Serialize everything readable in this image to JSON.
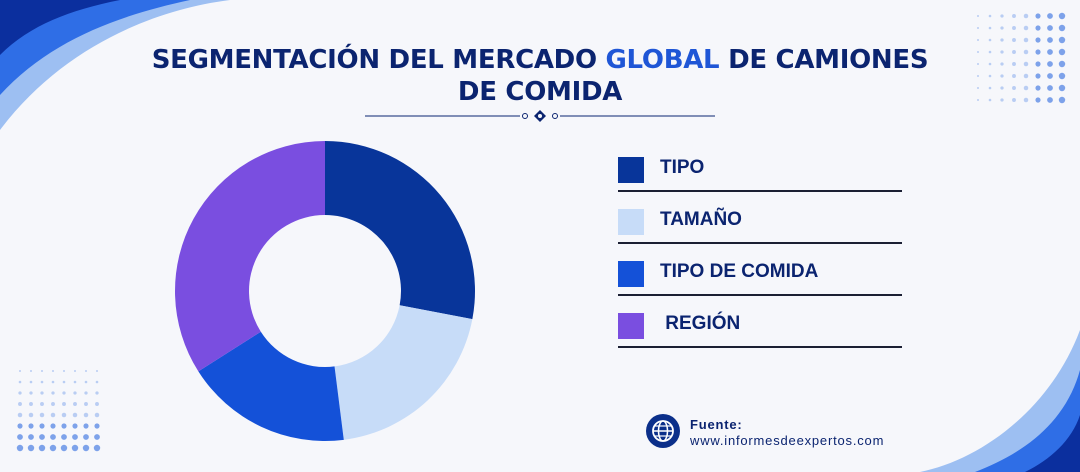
{
  "title": {
    "part1": "SEGMENTACIÓN DEL MERCADO ",
    "highlight": "GLOBAL",
    "part2": " DE CAMIONES",
    "line2": "DE COMIDA"
  },
  "colors": {
    "tipo": "#08359a",
    "tamano": "#c7dcf8",
    "tipo_comida": "#1451d8",
    "region": "#7a4ee0",
    "title": "#0b2470",
    "title_highlight": "#1f56d6"
  },
  "chart_data": {
    "type": "pie",
    "donut": true,
    "categories": [
      "TIPO",
      "TAMAÑO",
      "TIPO DE COMIDA",
      "REGIÓN"
    ],
    "values": [
      28,
      20,
      18,
      34
    ],
    "legend_position": "right"
  },
  "legend": [
    {
      "label": "TIPO",
      "color": "#08359a"
    },
    {
      "label": "TAMAÑO",
      "color": "#c7dcf8"
    },
    {
      "label": "TIPO DE COMIDA",
      "color": "#1451d8"
    },
    {
      "label": " REGIÓN",
      "color": "#7a4ee0"
    }
  ],
  "source": {
    "label": "Fuente:",
    "url": "www.informesdeexpertos.com",
    "icon": "globe-icon"
  }
}
